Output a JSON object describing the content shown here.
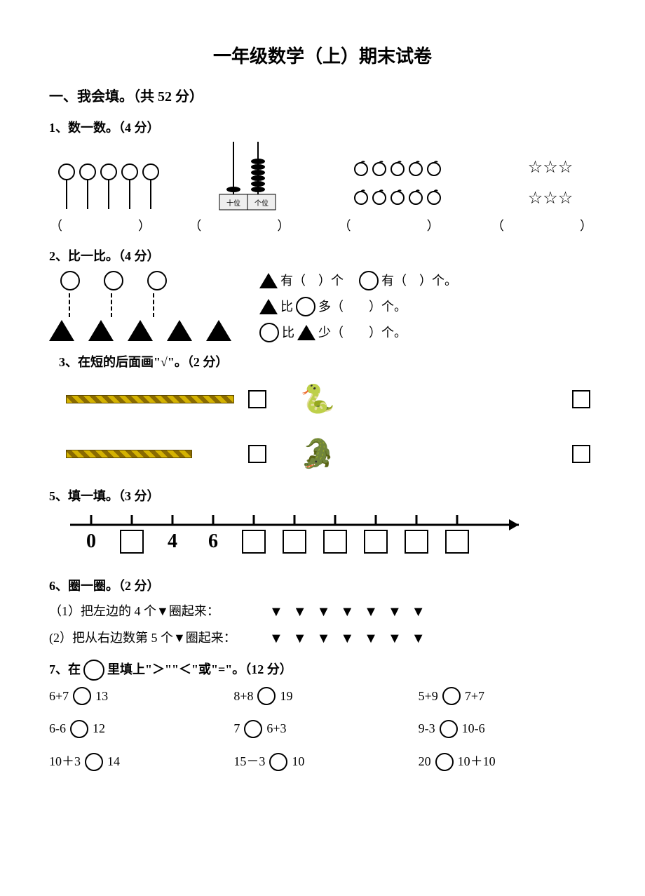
{
  "title": "一年级数学（上）期末试卷",
  "section1": {
    "heading": "一、我会填。（共 52 分）"
  },
  "q1": {
    "heading": "1、数一数。（4 分）",
    "balloons_count": 5,
    "apples_row1": 5,
    "apples_row2": 5,
    "stars_row1": 3,
    "stars_row2": 3,
    "paren": "（　　）",
    "abacus_labels": {
      "tens": "十位",
      "ones": "个位"
    }
  },
  "q2": {
    "heading": "2、比一比。（4 分）",
    "circles": 3,
    "triangles": 5,
    "lines": {
      "a1": "有（　）个",
      "a2": "有（　）个。",
      "b": "比",
      "b2": "多（　　）个。",
      "c": "比",
      "c2": "少（　　）个。"
    }
  },
  "q3": {
    "heading": "3、在短的后面画\"√\"。（2 分）",
    "animals": {
      "snake": "🐍",
      "croc": "🐊"
    }
  },
  "q5": {
    "heading": "5、填一填。（3 分）",
    "ticks": [
      "0",
      "",
      "4",
      "6",
      "",
      "",
      "",
      "",
      "",
      ""
    ],
    "show_box_at": [
      1,
      4,
      5,
      6,
      7,
      8,
      9
    ]
  },
  "q6": {
    "heading": "6、圈一圈。（2 分）",
    "line1": "（1）把左边的 4 个▼圈起来：",
    "line2": "(2）把从右边数第 5 个▼圈起来：",
    "n1": 7,
    "n2": 7
  },
  "q7": {
    "heading": "7、在　　里填上\"＞\"\"＜\"或\"=\"。（12 分）",
    "heading_pre": "7、在 ",
    "heading_post": " 里填上\"＞\"\"＜\"或\"=\"。（12 分）",
    "items": [
      {
        "l": "6+7",
        "r": "13"
      },
      {
        "l": "8+8",
        "r": "19"
      },
      {
        "l": "5+9",
        "r": "7+7"
      },
      {
        "l": "6-6",
        "r": "12"
      },
      {
        "l": "7",
        "r": "6+3"
      },
      {
        "l": "9-3",
        "r": "10-6"
      },
      {
        "l": "10＋3",
        "r": "14"
      },
      {
        "l": "15－3",
        "r": "10"
      },
      {
        "l": "20",
        "r": "10＋10"
      }
    ]
  }
}
